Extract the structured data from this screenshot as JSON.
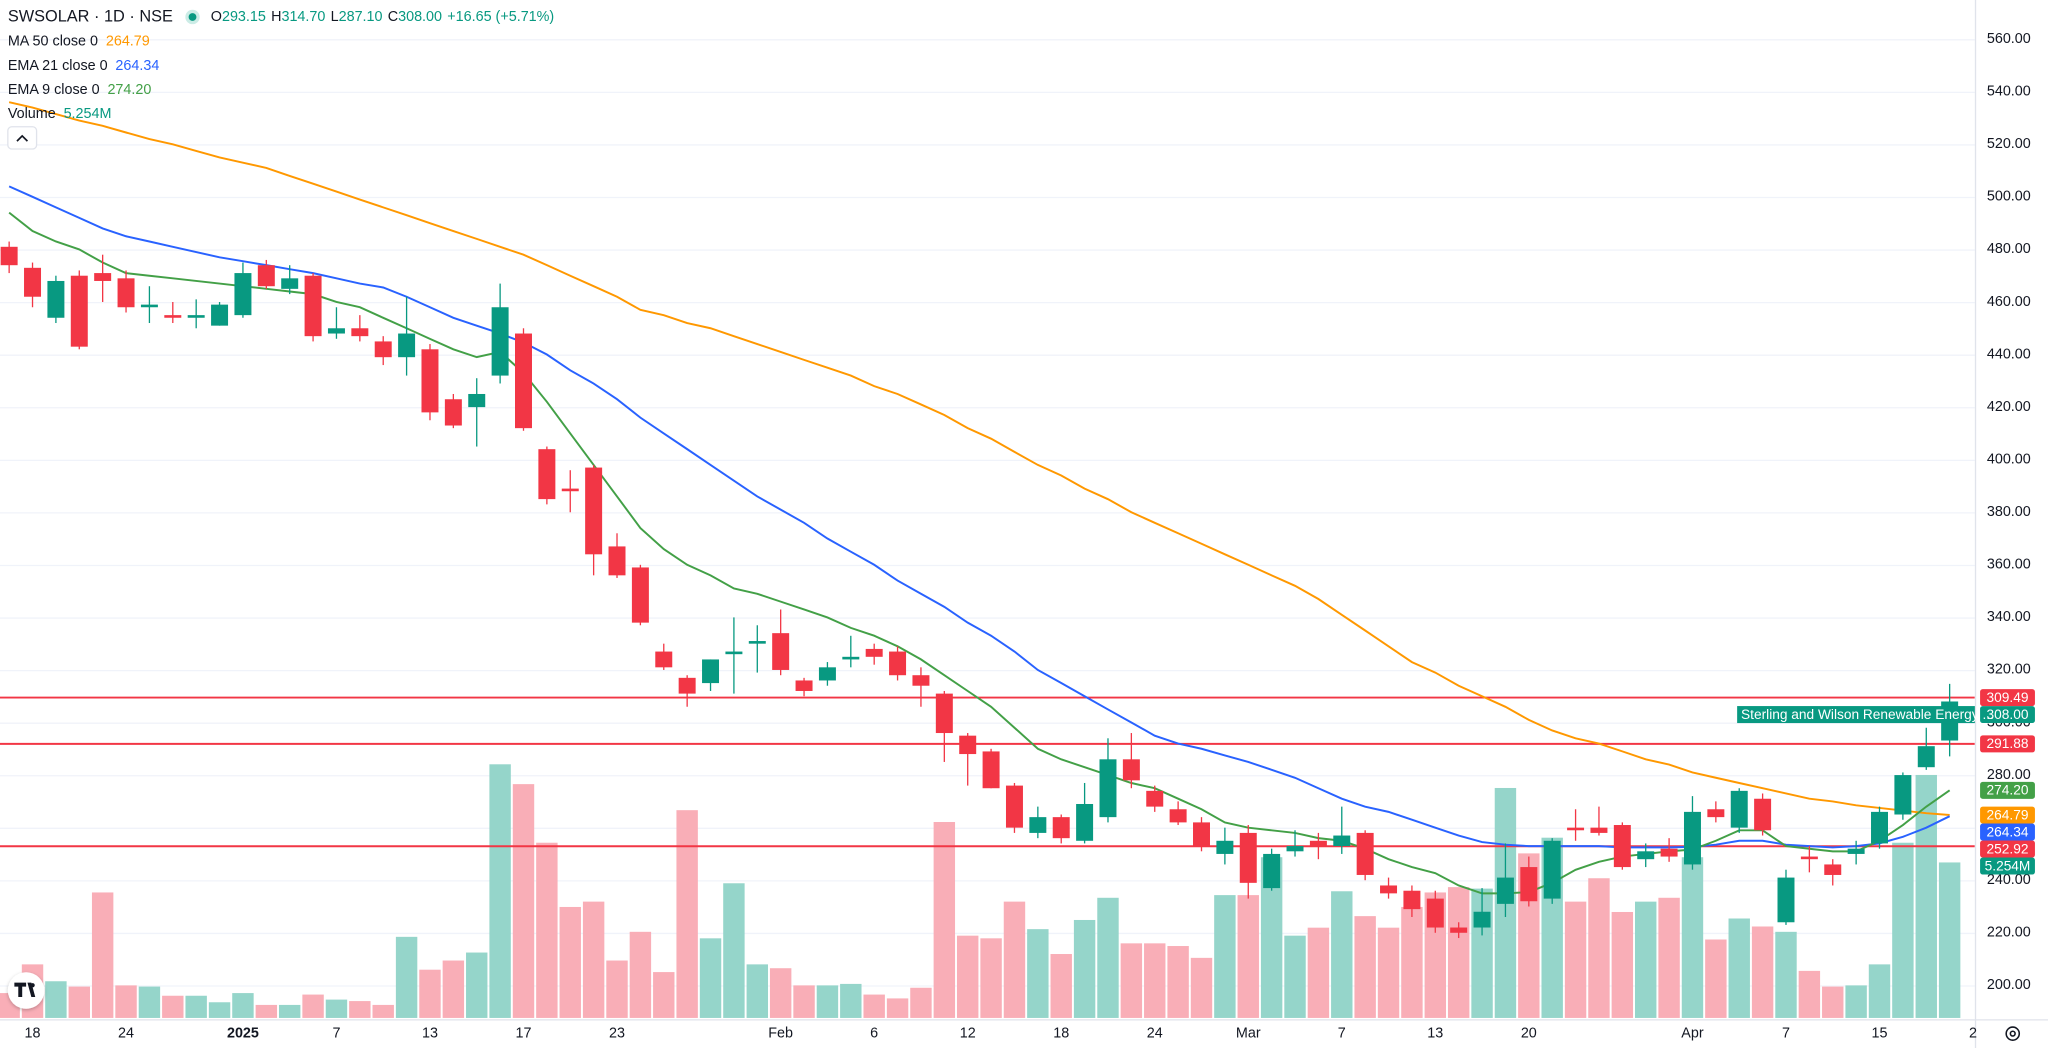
{
  "chart_data": {
    "type": "candlestick",
    "header": {
      "symbol": "SWSOLAR · 1D · NSE",
      "ohlc": [
        {
          "key": "O",
          "value": "293.15"
        },
        {
          "key": "H",
          "value": "314.70"
        },
        {
          "key": "L",
          "value": "287.10"
        },
        {
          "key": "C",
          "value": "308.00"
        }
      ],
      "change": "+16.65 (+5.71%)"
    },
    "instrument_label": "Sterling and Wilson Renewable Energy ...",
    "categories": [
      null,
      "18",
      null,
      null,
      null,
      "24",
      null,
      null,
      null,
      null,
      "2025",
      null,
      null,
      null,
      "7",
      null,
      null,
      null,
      "13",
      null,
      null,
      null,
      "17",
      null,
      null,
      null,
      "23",
      null,
      null,
      null,
      null,
      null,
      null,
      "Feb",
      null,
      null,
      null,
      "6",
      null,
      null,
      null,
      "12",
      null,
      null,
      null,
      "18",
      null,
      null,
      null,
      "24",
      null,
      null,
      null,
      "Mar",
      null,
      null,
      null,
      "7",
      null,
      null,
      null,
      "13",
      null,
      null,
      null,
      "20",
      null,
      null,
      null,
      null,
      null,
      null,
      "Apr",
      null,
      null,
      null,
      "7",
      null,
      null,
      null,
      "15",
      null,
      null,
      null,
      "2"
    ],
    "open": [
      481,
      473,
      454,
      470,
      471,
      469,
      458,
      455,
      454,
      451,
      455,
      474,
      465,
      470,
      448,
      450,
      445,
      439,
      442,
      423,
      420,
      432,
      448,
      404,
      389,
      397,
      367,
      359,
      327,
      317,
      315,
      326,
      330,
      334,
      316,
      316,
      324,
      328,
      327,
      318,
      311,
      295,
      289,
      276,
      258,
      264,
      255,
      264,
      286,
      274,
      267,
      262,
      250,
      258,
      237,
      251,
      255,
      253,
      258,
      238,
      236,
      233,
      222,
      222,
      231,
      245,
      233,
      260,
      260,
      261,
      248,
      252,
      246,
      267,
      260,
      271,
      224,
      249,
      246,
      250,
      254,
      265,
      283,
      293.15,
      null
    ],
    "high": [
      483,
      475,
      470,
      472,
      478,
      472,
      466,
      460,
      461,
      460,
      475,
      476,
      474,
      471,
      458,
      455,
      447,
      462,
      444,
      425,
      431,
      467,
      450,
      405,
      396,
      398,
      372,
      360,
      330,
      318,
      324,
      340,
      337,
      343,
      317,
      323,
      333,
      330,
      329,
      321,
      312,
      296,
      290,
      277,
      268,
      265,
      277,
      294,
      296,
      276,
      270,
      264,
      260,
      261,
      252,
      259,
      258,
      268,
      259,
      241,
      238,
      236,
      224,
      237,
      254,
      249,
      256,
      267,
      268,
      262,
      254,
      256,
      272,
      270,
      275,
      273,
      244,
      253,
      248,
      255,
      268,
      281,
      298,
      314.7,
      null
    ],
    "low": [
      471,
      458,
      452,
      442,
      460,
      456,
      452,
      452,
      450,
      451,
      454,
      465,
      463,
      445,
      446,
      445,
      436,
      432,
      415,
      412,
      405,
      429,
      411,
      383,
      380,
      356,
      355,
      337,
      320,
      306,
      312,
      311,
      319,
      318,
      310,
      314,
      321,
      322,
      316,
      306,
      285,
      276,
      275,
      258,
      256,
      254,
      254,
      262,
      275,
      266,
      261,
      251,
      246,
      233,
      236,
      249,
      248,
      250,
      240,
      233,
      226,
      220,
      218,
      219,
      226,
      230,
      231,
      255,
      257,
      244,
      245,
      247,
      244,
      262,
      258,
      257,
      223,
      243,
      238,
      246,
      252,
      263,
      282,
      287.1,
      null
    ],
    "close": [
      474,
      462,
      468,
      443,
      468,
      458,
      459,
      454,
      455,
      459,
      471,
      466,
      469,
      447,
      450,
      447,
      439,
      448,
      418,
      413,
      425,
      458,
      412,
      385,
      388,
      364,
      356,
      338,
      321,
      311,
      324,
      327,
      331,
      320,
      312,
      321,
      325,
      325,
      318,
      314,
      296,
      288,
      275,
      260,
      264,
      256,
      269,
      286,
      278,
      268,
      262,
      253,
      255,
      239,
      250,
      253,
      253,
      257,
      242,
      235,
      229,
      222,
      220,
      228,
      241,
      232,
      255,
      259,
      258,
      245,
      251,
      249,
      266,
      264,
      274,
      259,
      241,
      248,
      242,
      252,
      266,
      280,
      291,
      308,
      null
    ],
    "up_color": "#089981",
    "down_color": "#f23645",
    "volume": {
      "name": "Volume",
      "last": "5.254M",
      "up_color": "#8fd3c7",
      "down_color": "#f9aab3",
      "ylim": [
        0,
        10
      ],
      "values": [
        0.84,
        1.81,
        1.24,
        1.06,
        4.24,
        1.1,
        1.06,
        0.75,
        0.75,
        0.53,
        0.84,
        0.44,
        0.44,
        0.79,
        0.62,
        0.57,
        0.44,
        2.74,
        1.63,
        1.94,
        2.21,
        8.57,
        7.9,
        5.92,
        3.75,
        3.93,
        1.94,
        2.91,
        1.55,
        7.02,
        2.69,
        4.55,
        1.81,
        1.68,
        1.1,
        1.1,
        1.15,
        0.79,
        0.66,
        1.02,
        6.62,
        2.78,
        2.69,
        3.93,
        3.0,
        2.16,
        3.31,
        4.06,
        2.52,
        2.52,
        2.43,
        2.03,
        4.15,
        4.15,
        5.43,
        2.78,
        3.05,
        4.28,
        3.44,
        3.05,
        3.75,
        4.24,
        4.42,
        4.37,
        7.77,
        5.56,
        6.09,
        3.93,
        4.72,
        3.58,
        3.93,
        4.06,
        5.43,
        2.65,
        3.36,
        3.09,
        2.91,
        1.59,
        1.06,
        1.1,
        1.81,
        5.92,
        8.21,
        5.254,
        null
      ]
    },
    "indicators": [
      {
        "name": "MA 50 close 0",
        "last": "264.79",
        "color": "#ff9800",
        "values": [
          536,
          534,
          531.5,
          529,
          527,
          524.5,
          522,
          520,
          517.5,
          515,
          513,
          511,
          508,
          505,
          502,
          499,
          496,
          493,
          490,
          487,
          484,
          481,
          478,
          474,
          470,
          466,
          462,
          457,
          455,
          452,
          450,
          447,
          444,
          441,
          438,
          435,
          432,
          428,
          425,
          421,
          417,
          412,
          408,
          403,
          398,
          394,
          389,
          385,
          380,
          376,
          372,
          368,
          364,
          360,
          356,
          352,
          347,
          341,
          335,
          329,
          323,
          319,
          314,
          310,
          306,
          301,
          297,
          294,
          292,
          289,
          286,
          284,
          281,
          279,
          277,
          275,
          273,
          271,
          270,
          268.5,
          267.5,
          266.5,
          265.5,
          264.79,
          null
        ]
      },
      {
        "name": "EMA 21 close 0",
        "last": "264.34",
        "color": "#2962ff",
        "values": [
          504,
          500,
          496,
          492,
          488,
          485,
          483,
          481,
          479,
          477,
          475.5,
          474,
          472.5,
          471,
          469,
          467,
          465.5,
          462,
          458,
          454,
          451,
          448,
          444.6,
          440,
          434,
          429,
          423,
          416,
          410,
          404,
          398,
          392,
          386,
          381,
          376,
          370,
          365,
          360,
          354,
          349,
          344,
          338,
          333,
          327,
          320,
          315,
          310,
          305,
          300,
          295,
          292,
          290,
          287.5,
          285,
          282,
          279,
          275,
          271,
          268,
          266,
          263,
          260,
          257,
          254.5,
          253.5,
          253,
          253,
          253,
          253,
          252.5,
          252.5,
          252.5,
          252.7,
          253.5,
          255,
          255,
          253.5,
          253,
          252.5,
          253,
          254,
          256.5,
          260,
          264.34,
          null
        ]
      },
      {
        "name": "EMA 9 close 0",
        "last": "274.20",
        "color": "#43a047",
        "values": [
          494,
          487,
          483,
          480,
          475,
          471,
          470,
          469,
          468,
          467,
          466,
          465,
          464,
          463,
          460,
          458,
          454,
          450,
          446,
          442,
          439,
          441,
          433,
          422,
          410,
          398,
          386,
          374,
          366,
          360,
          356,
          351,
          349,
          346,
          343,
          340,
          336,
          333,
          329,
          324,
          318,
          312,
          306,
          298,
          290,
          286,
          283,
          280,
          277,
          275,
          271,
          267,
          262,
          260,
          259,
          258,
          256,
          255,
          252,
          248,
          245,
          242.7,
          238,
          235,
          235,
          235.5,
          239,
          244,
          247,
          249,
          250,
          251,
          251.7,
          255,
          259,
          259,
          253,
          252,
          251,
          251,
          255,
          261,
          268,
          274.2,
          null
        ]
      }
    ],
    "levels": [
      309.49,
      291.88,
      252.92
    ],
    "level_color": "#f23645",
    "ylim": [
      187.1,
      574.9
    ],
    "yticks": [
      {
        "value": 200,
        "label": "200.00"
      },
      {
        "value": 220,
        "label": "220.00"
      },
      {
        "value": 240,
        "label": "240.00"
      },
      {
        "value": 260,
        "label": "260.00"
      },
      {
        "value": 280,
        "label": "280.00"
      },
      {
        "value": 300,
        "label": "300.00"
      },
      {
        "value": 320,
        "label": "320.00"
      },
      {
        "value": 340,
        "label": "340.00"
      },
      {
        "value": 360,
        "label": "360.00"
      },
      {
        "value": 380,
        "label": "380.00"
      },
      {
        "value": 400,
        "label": "400.00"
      },
      {
        "value": 420,
        "label": "420.00"
      },
      {
        "value": 440,
        "label": "440.00"
      },
      {
        "value": 460,
        "label": "460.00"
      },
      {
        "value": 480,
        "label": "480.00"
      },
      {
        "value": 500,
        "label": "500.00"
      },
      {
        "value": 520,
        "label": "520.00"
      },
      {
        "value": 540,
        "label": "540.00"
      },
      {
        "value": 560,
        "label": "560.00"
      }
    ],
    "grid": true
  }
}
